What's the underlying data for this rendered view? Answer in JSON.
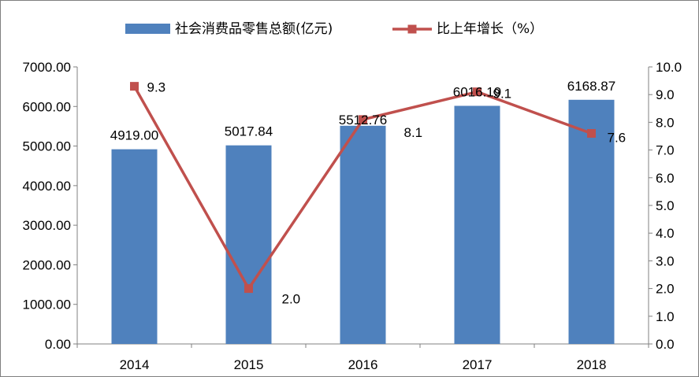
{
  "chart_data": {
    "type": "bar+line",
    "title": "",
    "categories": [
      "2014",
      "2015",
      "2016",
      "2017",
      "2018"
    ],
    "series": [
      {
        "name": "社会消费品零售总额(亿元)",
        "type": "bar",
        "axis": "left",
        "values": [
          4919.0,
          5017.84,
          5512.76,
          6016.19,
          6168.87
        ],
        "labels": [
          "4919.00",
          "5017.84",
          "5512.76",
          "6016.19",
          "6168.87"
        ],
        "color": "#4f81bd"
      },
      {
        "name": "比上年增长（%）",
        "type": "line",
        "axis": "right",
        "values": [
          9.3,
          2.0,
          8.1,
          9.1,
          7.6
        ],
        "labels": [
          "9.3",
          "2.0",
          "8.1",
          "9.1",
          "7.6"
        ],
        "color": "#c0504d"
      }
    ],
    "y_left": {
      "min": 0,
      "max": 7000,
      "step": 1000,
      "tick_labels": [
        "0.00",
        "1000.00",
        "2000.00",
        "3000.00",
        "4000.00",
        "5000.00",
        "6000.00",
        "7000.00"
      ]
    },
    "y_right": {
      "min": 0,
      "max": 10,
      "step": 1,
      "tick_labels": [
        "0.0",
        "1.0",
        "2.0",
        "3.0",
        "4.0",
        "5.0",
        "6.0",
        "7.0",
        "8.0",
        "9.0",
        "10.0"
      ]
    },
    "grid": false,
    "legend_position": "top"
  }
}
